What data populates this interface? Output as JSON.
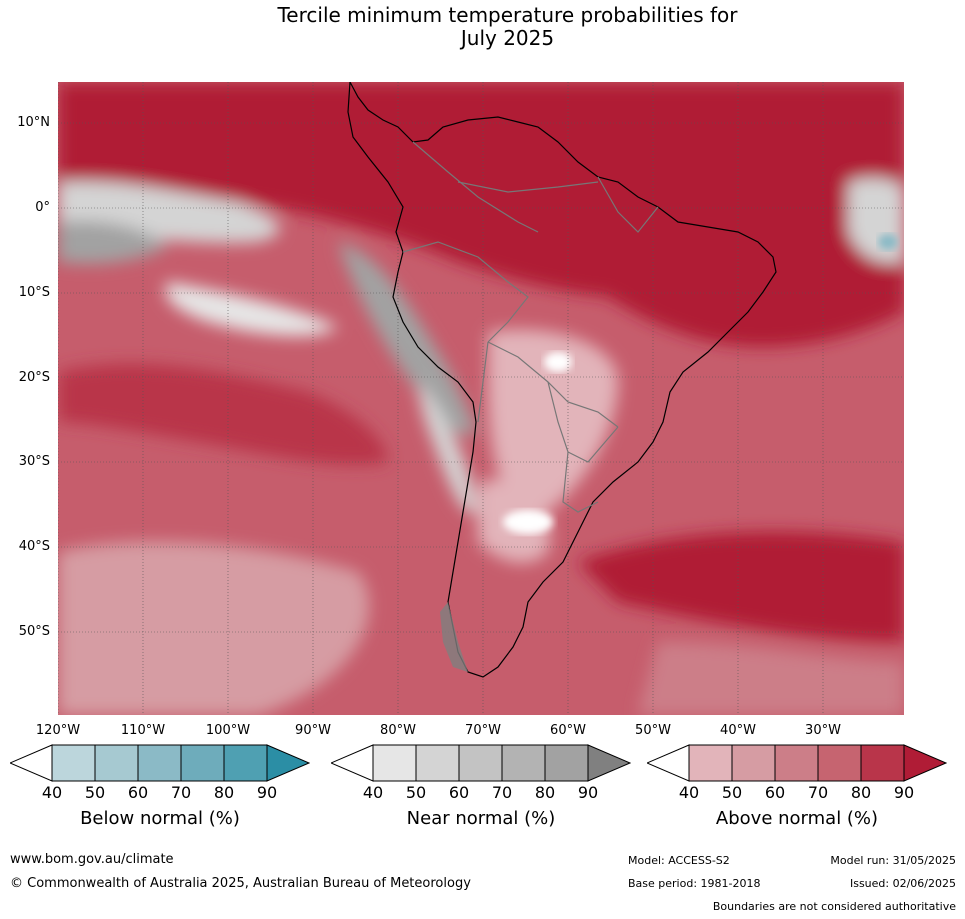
{
  "title_line1": "Tercile minimum temperature probabilities for",
  "title_line2": "July 2025",
  "map": {
    "lat_labels": [
      "10°N",
      "0°",
      "10°S",
      "20°S",
      "30°S",
      "40°S",
      "50°S"
    ],
    "lon_labels": [
      "120°W",
      "110°W",
      "100°W",
      "90°W",
      "80°W",
      "70°W",
      "60°W",
      "50°W",
      "40°W",
      "30°W"
    ]
  },
  "colorbars": [
    {
      "label": "Below normal (%)",
      "ticks": [
        "40",
        "50",
        "60",
        "70",
        "80",
        "90"
      ],
      "colors": [
        "#ffffff",
        "#bcd6dc",
        "#a6c9d1",
        "#8bbac6",
        "#6eacbb",
        "#4fa0b2",
        "#2b8ea5"
      ]
    },
    {
      "label": "Near normal (%)",
      "ticks": [
        "40",
        "50",
        "60",
        "70",
        "80",
        "90"
      ],
      "colors": [
        "#ffffff",
        "#e6e6e6",
        "#d4d4d4",
        "#c3c3c3",
        "#b3b3b3",
        "#a2a2a2",
        "#808080"
      ]
    },
    {
      "label": "Above normal (%)",
      "ticks": [
        "40",
        "50",
        "60",
        "70",
        "80",
        "90"
      ],
      "colors": [
        "#ffffff",
        "#e2b4ba",
        "#d69ca3",
        "#cc7e88",
        "#c66470",
        "#b9354a",
        "#b01c36"
      ]
    }
  ],
  "footer": {
    "website": "www.bom.gov.au/climate",
    "copyright": "© Commonwealth of Australia 2025, Australian Bureau of Meteorology",
    "model": "Model: ACCESS-S2",
    "model_run": "Model run: 31/05/2025",
    "base_period": "Base period: 1981-2018",
    "issued": "Issued: 02/06/2025",
    "disclaimer": "Boundaries are not considered authoritative"
  }
}
